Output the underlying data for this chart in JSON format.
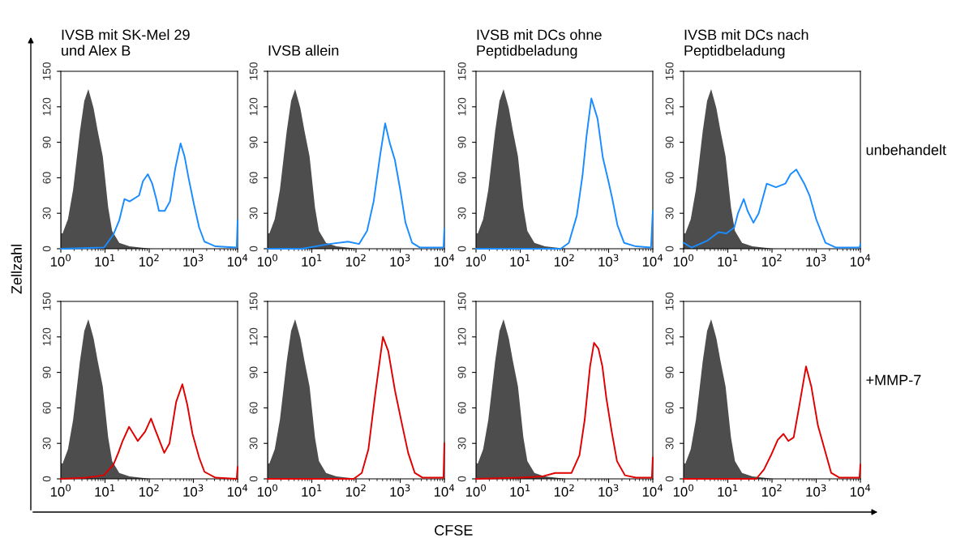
{
  "chart_data": [
    {
      "type": "line",
      "title": "IVSB mit SK-Mel 29\nund Alex B",
      "log": "x",
      "xlim": [
        1,
        10000
      ],
      "ylim": [
        0,
        150
      ],
      "yticks": [
        0,
        30,
        60,
        90,
        120,
        150
      ],
      "xticks": [
        {
          "value": 1,
          "label": "10$^{0}$"
        },
        {
          "value": 10,
          "label": "10$^{1}$"
        },
        {
          "value": 100,
          "label": "10$^{2}$"
        },
        {
          "value": 1000,
          "label": "10$^{3}$"
        },
        {
          "value": 10000,
          "label": "10$^{4}$"
        }
      ],
      "series": [
        {
          "type": "area",
          "color": "#4d4d4d",
          "x": [
            1,
            1.03,
            1.1,
            1.45,
            1.9,
            2.7,
            3.4,
            4.2,
            5.5,
            6.8,
            8.9,
            11.8,
            14.5,
            21,
            36,
            110
          ],
          "values": [
            143,
            13,
            13,
            25,
            50,
            99,
            125,
            135,
            119,
            100,
            78,
            35,
            15,
            5,
            2,
            0
          ]
        },
        {
          "color": "#1a8cff",
          "x": [
            1,
            9.5,
            15.5,
            21,
            27.5,
            36,
            59,
            72,
            93,
            117,
            145,
            166,
            224,
            295,
            389,
            513,
            631,
            776,
            1023,
            1349,
            1778,
            3162,
            9550,
            10000
          ],
          "values": [
            0,
            1,
            12,
            24,
            42,
            40,
            45,
            57,
            63,
            55,
            42,
            32,
            32,
            40,
            68,
            89,
            78,
            60,
            38,
            18,
            6,
            2,
            1,
            24
          ]
        }
      ]
    },
    {
      "type": "line",
      "title": "IVSB allein",
      "log": "x",
      "xlim": [
        1,
        10000
      ],
      "ylim": [
        0,
        150
      ],
      "yticks": [
        0,
        30,
        60,
        90,
        120,
        150
      ],
      "xticks": [
        {
          "value": 1,
          "label": "10$^{0}$"
        },
        {
          "value": 10,
          "label": "10$^{1}$"
        },
        {
          "value": 100,
          "label": "10$^{2}$"
        },
        {
          "value": 1000,
          "label": "10$^{3}$"
        },
        {
          "value": 10000,
          "label": "10$^{4}$"
        }
      ],
      "series": [
        {
          "type": "area",
          "color": "#4d4d4d",
          "x": [
            1,
            1.03,
            1.1,
            1.45,
            1.9,
            2.7,
            3.4,
            4.2,
            5.5,
            6.8,
            8.9,
            11.8,
            14.5,
            21,
            36,
            110
          ],
          "values": [
            143,
            13,
            13,
            25,
            50,
            99,
            125,
            135,
            119,
            100,
            78,
            35,
            15,
            5,
            2,
            0
          ]
        },
        {
          "color": "#1a8cff",
          "x": [
            1,
            6,
            25,
            66,
            117,
            178,
            251,
            355,
            457,
            575,
            759,
            1000,
            1318,
            1862,
            2818,
            9550,
            10000
          ],
          "values": [
            0,
            0,
            4,
            6,
            4,
            15,
            40,
            80,
            106,
            90,
            75,
            50,
            22,
            5,
            1,
            1,
            17
          ]
        }
      ]
    },
    {
      "type": "line",
      "title": "IVSB mit DCs ohne\nPeptidbeladung",
      "log": "x",
      "xlim": [
        1,
        10000
      ],
      "ylim": [
        0,
        150
      ],
      "yticks": [
        0,
        30,
        60,
        90,
        120,
        150
      ],
      "xticks": [
        {
          "value": 1,
          "label": "10$^{0}$"
        },
        {
          "value": 10,
          "label": "10$^{1}$"
        },
        {
          "value": 100,
          "label": "10$^{2}$"
        },
        {
          "value": 1000,
          "label": "10$^{3}$"
        },
        {
          "value": 10000,
          "label": "10$^{4}$"
        }
      ],
      "series": [
        {
          "type": "area",
          "color": "#4d4d4d",
          "x": [
            1,
            1.03,
            1.1,
            1.45,
            1.9,
            2.7,
            3.4,
            4.2,
            5.5,
            6.8,
            8.9,
            11.8,
            14.5,
            21,
            36,
            110
          ],
          "values": [
            143,
            13,
            13,
            25,
            50,
            99,
            125,
            135,
            119,
            100,
            78,
            35,
            15,
            5,
            2,
            0
          ]
        },
        {
          "color": "#1a8cff",
          "x": [
            1,
            83,
            126,
            191,
            257,
            316,
            407,
            562,
            741,
            977,
            1202,
            1585,
            2239,
            4169,
            9120,
            10000
          ],
          "values": [
            0,
            0,
            5,
            28,
            62,
            95,
            127,
            110,
            77,
            58,
            43,
            20,
            5,
            2,
            1,
            32
          ]
        }
      ]
    },
    {
      "type": "line",
      "title": "IVSB mit DCs nach\nPeptidbeladung",
      "annotations": [
        "unbehandelt"
      ],
      "log": "x",
      "xlim": [
        1,
        10000
      ],
      "ylim": [
        0,
        150
      ],
      "yticks": [
        0,
        30,
        60,
        90,
        120,
        150
      ],
      "xticks": [
        {
          "value": 1,
          "label": "10$^{0}$"
        },
        {
          "value": 10,
          "label": "10$^{1}$"
        },
        {
          "value": 100,
          "label": "10$^{2}$"
        },
        {
          "value": 1000,
          "label": "10$^{3}$"
        },
        {
          "value": 10000,
          "label": "10$^{4}$"
        }
      ],
      "series": [
        {
          "type": "area",
          "color": "#4d4d4d",
          "x": [
            1,
            1.03,
            1.1,
            1.45,
            1.9,
            2.7,
            3.4,
            4.2,
            5.5,
            6.8,
            8.9,
            11.8,
            14.5,
            21,
            36,
            110
          ],
          "values": [
            143,
            13,
            13,
            25,
            50,
            99,
            125,
            135,
            119,
            100,
            78,
            35,
            15,
            5,
            2,
            0
          ]
        },
        {
          "color": "#1a8cff",
          "x": [
            1,
            1.5,
            3.5,
            6.2,
            9.3,
            14,
            17,
            23,
            28,
            38,
            50,
            76,
            123,
            200,
            263,
            355,
            537,
            708,
            1000,
            1622,
            2818,
            9550,
            10000
          ],
          "values": [
            5,
            1,
            7,
            14,
            13,
            18,
            30,
            42,
            32,
            22,
            30,
            55,
            52,
            55,
            63,
            67,
            55,
            45,
            25,
            5,
            1,
            1,
            4
          ]
        }
      ]
    },
    {
      "type": "line",
      "log": "x",
      "xlim": [
        1,
        10000
      ],
      "ylim": [
        0,
        150
      ],
      "yticks": [
        0,
        30,
        60,
        90,
        120,
        150
      ],
      "xticks": [
        {
          "value": 1,
          "label": "10$^{0}$"
        },
        {
          "value": 10,
          "label": "10$^{1}$"
        },
        {
          "value": 100,
          "label": "10$^{2}$"
        },
        {
          "value": 1000,
          "label": "10$^{3}$"
        },
        {
          "value": 10000,
          "label": "10$^{4}$"
        }
      ],
      "series": [
        {
          "type": "area",
          "color": "#4d4d4d",
          "x": [
            1,
            1.03,
            1.1,
            1.45,
            1.9,
            2.7,
            3.4,
            4.2,
            5.5,
            6.8,
            8.9,
            11.8,
            14.5,
            21,
            36,
            110
          ],
          "values": [
            143,
            13,
            13,
            25,
            50,
            99,
            125,
            135,
            119,
            100,
            78,
            35,
            15,
            5,
            2,
            0
          ]
        },
        {
          "color": "#e00000",
          "x": [
            1,
            3.8,
            9.3,
            15.5,
            20,
            25,
            35,
            44,
            55,
            81,
            110,
            135,
            219,
            288,
            407,
            562,
            724,
            955,
            1349,
            1778,
            3162,
            9550,
            10000
          ],
          "values": [
            0,
            1,
            3,
            12,
            22,
            32,
            44,
            38,
            32,
            40,
            51,
            42,
            22,
            30,
            65,
            80,
            63,
            38,
            18,
            6,
            1,
            0,
            10
          ]
        }
      ]
    },
    {
      "type": "line",
      "log": "x",
      "xlim": [
        1,
        10000
      ],
      "ylim": [
        0,
        150
      ],
      "yticks": [
        0,
        30,
        60,
        90,
        120,
        150
      ],
      "xticks": [
        {
          "value": 1,
          "label": "10$^{0}$"
        },
        {
          "value": 10,
          "label": "10$^{1}$"
        },
        {
          "value": 100,
          "label": "10$^{2}$"
        },
        {
          "value": 1000,
          "label": "10$^{3}$"
        },
        {
          "value": 10000,
          "label": "10$^{4}$"
        }
      ],
      "series": [
        {
          "type": "area",
          "color": "#4d4d4d",
          "x": [
            1,
            1.03,
            1.1,
            1.45,
            1.9,
            2.7,
            3.4,
            4.2,
            5.5,
            6.8,
            8.9,
            11.8,
            14.5,
            21,
            36,
            110
          ],
          "values": [
            143,
            13,
            13,
            25,
            50,
            99,
            125,
            135,
            119,
            100,
            78,
            35,
            15,
            5,
            2,
            0
          ]
        },
        {
          "color": "#e00000",
          "x": [
            1,
            89,
            135,
            191,
            269,
            407,
            537,
            759,
            1072,
            1514,
            2138,
            3236,
            9550,
            10000
          ],
          "values": [
            0,
            0,
            5,
            25,
            70,
            120,
            108,
            75,
            48,
            22,
            5,
            1,
            1,
            30
          ]
        }
      ]
    },
    {
      "type": "line",
      "log": "x",
      "xlim": [
        1,
        10000
      ],
      "ylim": [
        0,
        150
      ],
      "yticks": [
        0,
        30,
        60,
        90,
        120,
        150
      ],
      "xticks": [
        {
          "value": 1,
          "label": "10$^{0}$"
        },
        {
          "value": 10,
          "label": "10$^{1}$"
        },
        {
          "value": 100,
          "label": "10$^{2}$"
        },
        {
          "value": 1000,
          "label": "10$^{3}$"
        },
        {
          "value": 10000,
          "label": "10$^{4}$"
        }
      ],
      "series": [
        {
          "type": "area",
          "color": "#4d4d4d",
          "x": [
            1,
            1.03,
            1.1,
            1.45,
            1.9,
            2.7,
            3.4,
            4.2,
            5.5,
            6.8,
            8.9,
            11.8,
            14.5,
            21,
            36,
            110
          ],
          "values": [
            143,
            13,
            13,
            25,
            50,
            99,
            125,
            135,
            119,
            100,
            78,
            35,
            15,
            5,
            2,
            0
          ]
        },
        {
          "color": "#e00000",
          "x": [
            1,
            10,
            31,
            62,
            145,
            219,
            288,
            380,
            468,
            589,
            724,
            891,
            1175,
            1549,
            2344,
            4169,
            9550,
            10000
          ],
          "values": [
            0,
            1,
            2,
            5,
            5,
            20,
            50,
            95,
            115,
            110,
            95,
            68,
            40,
            15,
            3,
            1,
            1,
            18
          ]
        }
      ]
    },
    {
      "type": "line",
      "annotations": [
        "+MMP-7"
      ],
      "log": "x",
      "xlim": [
        1,
        10000
      ],
      "ylim": [
        0,
        150
      ],
      "yticks": [
        0,
        30,
        60,
        90,
        120,
        150
      ],
      "xticks": [
        {
          "value": 1,
          "label": "10$^{0}$"
        },
        {
          "value": 10,
          "label": "10$^{1}$"
        },
        {
          "value": 100,
          "label": "10$^{2}$"
        },
        {
          "value": 1000,
          "label": "10$^{3}$"
        },
        {
          "value": 10000,
          "label": "10$^{4}$"
        }
      ],
      "series": [
        {
          "type": "area",
          "color": "#4d4d4d",
          "x": [
            1,
            1.03,
            1.1,
            1.45,
            1.9,
            2.7,
            3.4,
            4.2,
            5.5,
            6.8,
            8.9,
            11.8,
            14.5,
            21,
            36,
            110
          ],
          "values": [
            143,
            13,
            13,
            25,
            50,
            99,
            125,
            135,
            119,
            100,
            78,
            35,
            15,
            5,
            2,
            0
          ]
        },
        {
          "color": "#e00000",
          "x": [
            1,
            44,
            66,
            95,
            135,
            182,
            234,
            309,
            407,
            589,
            776,
            1096,
            1549,
            2188,
            3388,
            9550,
            10000
          ],
          "values": [
            0,
            0,
            8,
            20,
            33,
            38,
            32,
            35,
            60,
            95,
            78,
            45,
            25,
            5,
            1,
            1,
            12
          ]
        }
      ]
    },
    {
      "type": "other",
      "ylabel": "Zellzahl",
      "xlabel": "CFSE"
    }
  ]
}
